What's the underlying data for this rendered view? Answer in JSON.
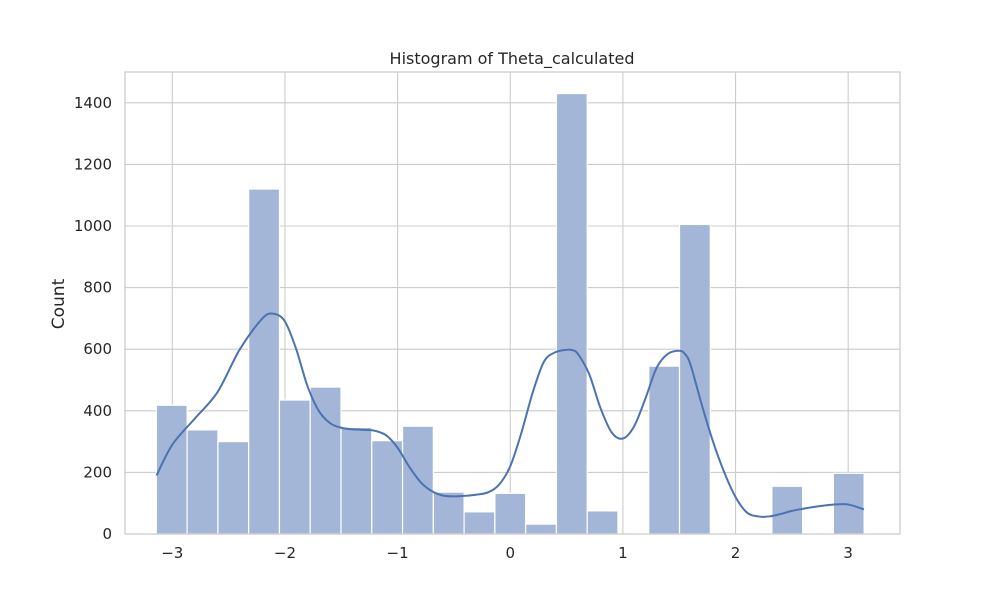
{
  "chart_data": {
    "type": "bar",
    "title": "Histogram of Theta_calculated",
    "xlabel": "",
    "ylabel": "Count",
    "xlim": [
      -3.42,
      3.46
    ],
    "ylim": [
      0,
      1500
    ],
    "grid": true,
    "legend": "none",
    "x_ticks": [
      -3,
      -2,
      -1,
      0,
      1,
      2,
      3
    ],
    "x_tick_labels": [
      "−3",
      "−2",
      "−1",
      "0",
      "1",
      "2",
      "3"
    ],
    "y_ticks": [
      0,
      200,
      400,
      600,
      800,
      1000,
      1200,
      1400
    ],
    "y_tick_labels": [
      "0",
      "200",
      "400",
      "600",
      "800",
      "1000",
      "1200",
      "1400"
    ],
    "bin_edges": [
      -3.1416,
      -2.8684,
      -2.5952,
      -2.322,
      -2.0488,
      -1.7756,
      -1.5024,
      -1.2292,
      -0.956,
      -0.6828,
      -0.4096,
      -0.1364,
      0.1368,
      0.41,
      0.6832,
      0.9564,
      1.2296,
      1.5028,
      1.776,
      2.0492,
      2.3224,
      2.5956,
      2.8688,
      3.1416
    ],
    "counts": [
      418,
      338,
      300,
      1120,
      435,
      477,
      346,
      303,
      350,
      136,
      72,
      132,
      32,
      1430,
      75,
      0,
      545,
      1005,
      0,
      0,
      155,
      0,
      197
    ],
    "kde": {
      "x": [
        -3.14,
        -3.0,
        -2.8,
        -2.6,
        -2.4,
        -2.2,
        -2.1,
        -2.0,
        -1.9,
        -1.8,
        -1.7,
        -1.6,
        -1.5,
        -1.4,
        -1.3,
        -1.2,
        -1.1,
        -1.0,
        -0.9,
        -0.8,
        -0.7,
        -0.6,
        -0.5,
        -0.4,
        -0.3,
        -0.2,
        -0.1,
        0.0,
        0.1,
        0.2,
        0.3,
        0.4,
        0.5,
        0.55,
        0.6,
        0.7,
        0.8,
        0.9,
        1.0,
        1.1,
        1.2,
        1.3,
        1.4,
        1.5,
        1.55,
        1.6,
        1.7,
        1.8,
        1.9,
        2.0,
        2.1,
        2.2,
        2.3,
        2.4,
        2.5,
        2.6,
        2.7,
        2.8,
        2.9,
        3.0,
        3.14
      ],
      "y": [
        190,
        290,
        375,
        460,
        600,
        700,
        715,
        690,
        600,
        480,
        400,
        360,
        345,
        340,
        338,
        335,
        320,
        280,
        220,
        170,
        140,
        125,
        122,
        124,
        128,
        135,
        160,
        220,
        330,
        460,
        560,
        590,
        598,
        597,
        585,
        520,
        410,
        330,
        310,
        350,
        440,
        540,
        585,
        595,
        585,
        550,
        420,
        300,
        200,
        120,
        70,
        57,
        57,
        65,
        75,
        82,
        88,
        93,
        96,
        96,
        80
      ]
    },
    "colors": {
      "bar_fill": "#a4b6d7",
      "bar_stroke": "#ffffff",
      "kde_line": "#4c72b0",
      "grid": "#cccccc",
      "frame": "#cccccc"
    }
  }
}
